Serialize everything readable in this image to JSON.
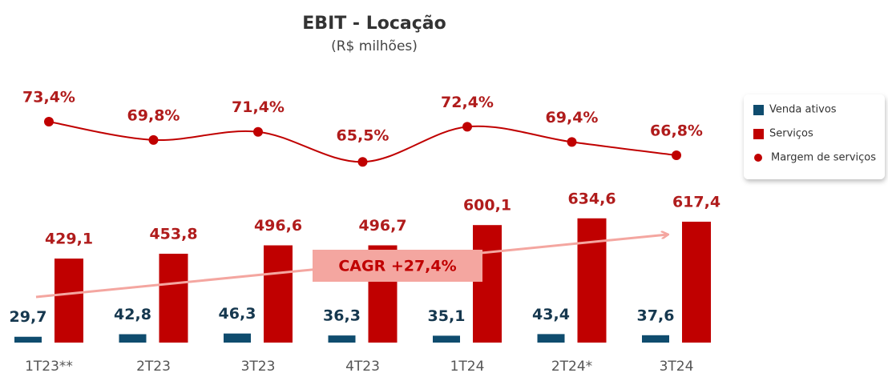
{
  "chart_data": {
    "type": "bar",
    "title": "EBIT - Locação",
    "subtitle": "(R$ milhões)",
    "annotation": "CAGR +27,4%",
    "categories": [
      "1T23**",
      "2T23",
      "3T23",
      "4T23",
      "1T24",
      "2T24*",
      "3T24"
    ],
    "ylim": [
      0,
      1300
    ],
    "y2lim": [
      30,
      80
    ],
    "legend": "right",
    "series": [
      {
        "name": "Venda ativos",
        "color": "#0f4c6e",
        "values": [
          29.7,
          42.8,
          46.3,
          36.3,
          35.1,
          43.4,
          37.6
        ],
        "value_labels": [
          "29,7",
          "42,8",
          "46,3",
          "36,3",
          "35,1",
          "43,4",
          "37,6"
        ]
      },
      {
        "name": "Serviços",
        "color": "#c00000",
        "values": [
          429.1,
          453.8,
          496.6,
          496.7,
          600.1,
          634.6,
          617.4
        ],
        "value_labels": [
          "429,1",
          "453,8",
          "496,6",
          "496,7",
          "600,1",
          "634,6",
          "617,4"
        ]
      },
      {
        "name": "Margem de serviços",
        "type": "line",
        "axis": "y2",
        "color": "#c00000",
        "values": [
          73.4,
          69.8,
          71.4,
          65.5,
          72.4,
          69.4,
          66.8
        ],
        "value_labels": [
          "73,4%",
          "69,8%",
          "71,4%",
          "65,5%",
          "72,4%",
          "69,4%",
          "66,8%"
        ]
      }
    ]
  }
}
